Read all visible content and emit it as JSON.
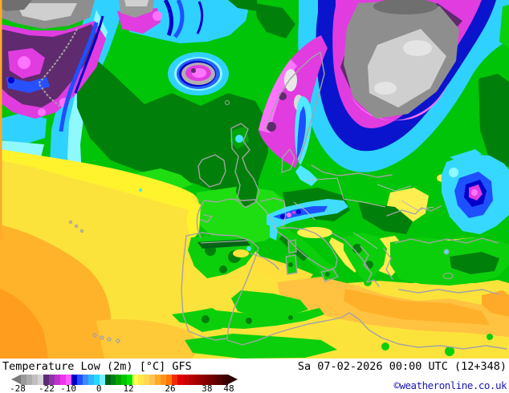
{
  "header": {
    "title": "Temperature Low (2m)",
    "units": "[°C]",
    "model": "GFS",
    "datetime": "Sa 07-02-2026 00:00 UTC (12+348)",
    "attribution": "©weatheronline.co.uk",
    "attribution_color": "#1a16b4"
  },
  "colorbar": {
    "unit": "°C",
    "ticks": [
      "-28",
      "-22",
      "-10",
      "0",
      "12",
      "26",
      "38",
      "48"
    ],
    "tick_positions_pct": [
      2.8,
      15.6,
      25.2,
      38.7,
      51.8,
      70.2,
      86.5,
      96.1
    ],
    "arrow_left_color": "#7a7a7a",
    "arrow_right_color": "#2d0000",
    "colors": [
      "#9a9a9a",
      "#adadad",
      "#c0c0c0",
      "#d4d4d4",
      "#5c2b7a",
      "#9032a8",
      "#c032cc",
      "#ee36ee",
      "#ff5cff",
      "#0000c8",
      "#1e50ff",
      "#3c8cff",
      "#2fb4ff",
      "#28d7ff",
      "#78f0ff",
      "#006414",
      "#008214",
      "#00a500",
      "#00c800",
      "#00e600",
      "#ffff50",
      "#ffe946",
      "#ffd850",
      "#ffc350",
      "#ffa928",
      "#ff921e",
      "#ff7800",
      "#f12c00",
      "#e10000",
      "#cd0000",
      "#b90000",
      "#a50000",
      "#910000",
      "#7d0000",
      "#690000",
      "#550000",
      "#410000"
    ]
  }
}
